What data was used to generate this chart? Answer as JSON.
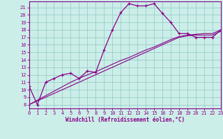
{
  "xlabel": "Windchill (Refroidissement éolien,°C)",
  "bg_color": "#cceee8",
  "line_color": "#880088",
  "grid_color": "#99cccc",
  "x_data": [
    0,
    1,
    2,
    3,
    4,
    5,
    6,
    7,
    8,
    9,
    10,
    11,
    12,
    13,
    14,
    15,
    16,
    17,
    18,
    19,
    20,
    21,
    22,
    23
  ],
  "curve1": [
    10.5,
    8.0,
    11.0,
    11.5,
    12.0,
    12.2,
    11.5,
    12.5,
    12.3,
    15.3,
    18.0,
    20.3,
    21.5,
    21.2,
    21.2,
    21.5,
    20.2,
    19.0,
    17.5,
    17.5,
    17.0,
    17.0,
    17.0,
    18.0
  ],
  "line1": [
    8.0,
    8.6,
    9.2,
    9.8,
    10.4,
    11.0,
    11.5,
    12.0,
    12.4,
    12.9,
    13.4,
    13.9,
    14.3,
    14.8,
    15.3,
    15.7,
    16.2,
    16.7,
    17.1,
    17.3,
    17.4,
    17.5,
    17.5,
    18.0
  ],
  "line2": [
    8.0,
    8.5,
    9.0,
    9.5,
    10.0,
    10.5,
    11.0,
    11.5,
    12.0,
    12.5,
    13.0,
    13.5,
    14.0,
    14.5,
    15.0,
    15.5,
    16.0,
    16.5,
    17.0,
    17.2,
    17.3,
    17.3,
    17.3,
    17.8
  ],
  "xlim": [
    0,
    23
  ],
  "ylim": [
    7.5,
    21.8
  ],
  "yticks": [
    8,
    9,
    10,
    11,
    12,
    13,
    14,
    15,
    16,
    17,
    18,
    19,
    20,
    21
  ],
  "xticks": [
    0,
    1,
    2,
    3,
    4,
    5,
    6,
    7,
    8,
    9,
    10,
    11,
    12,
    13,
    14,
    15,
    16,
    17,
    18,
    19,
    20,
    21,
    22,
    23
  ]
}
